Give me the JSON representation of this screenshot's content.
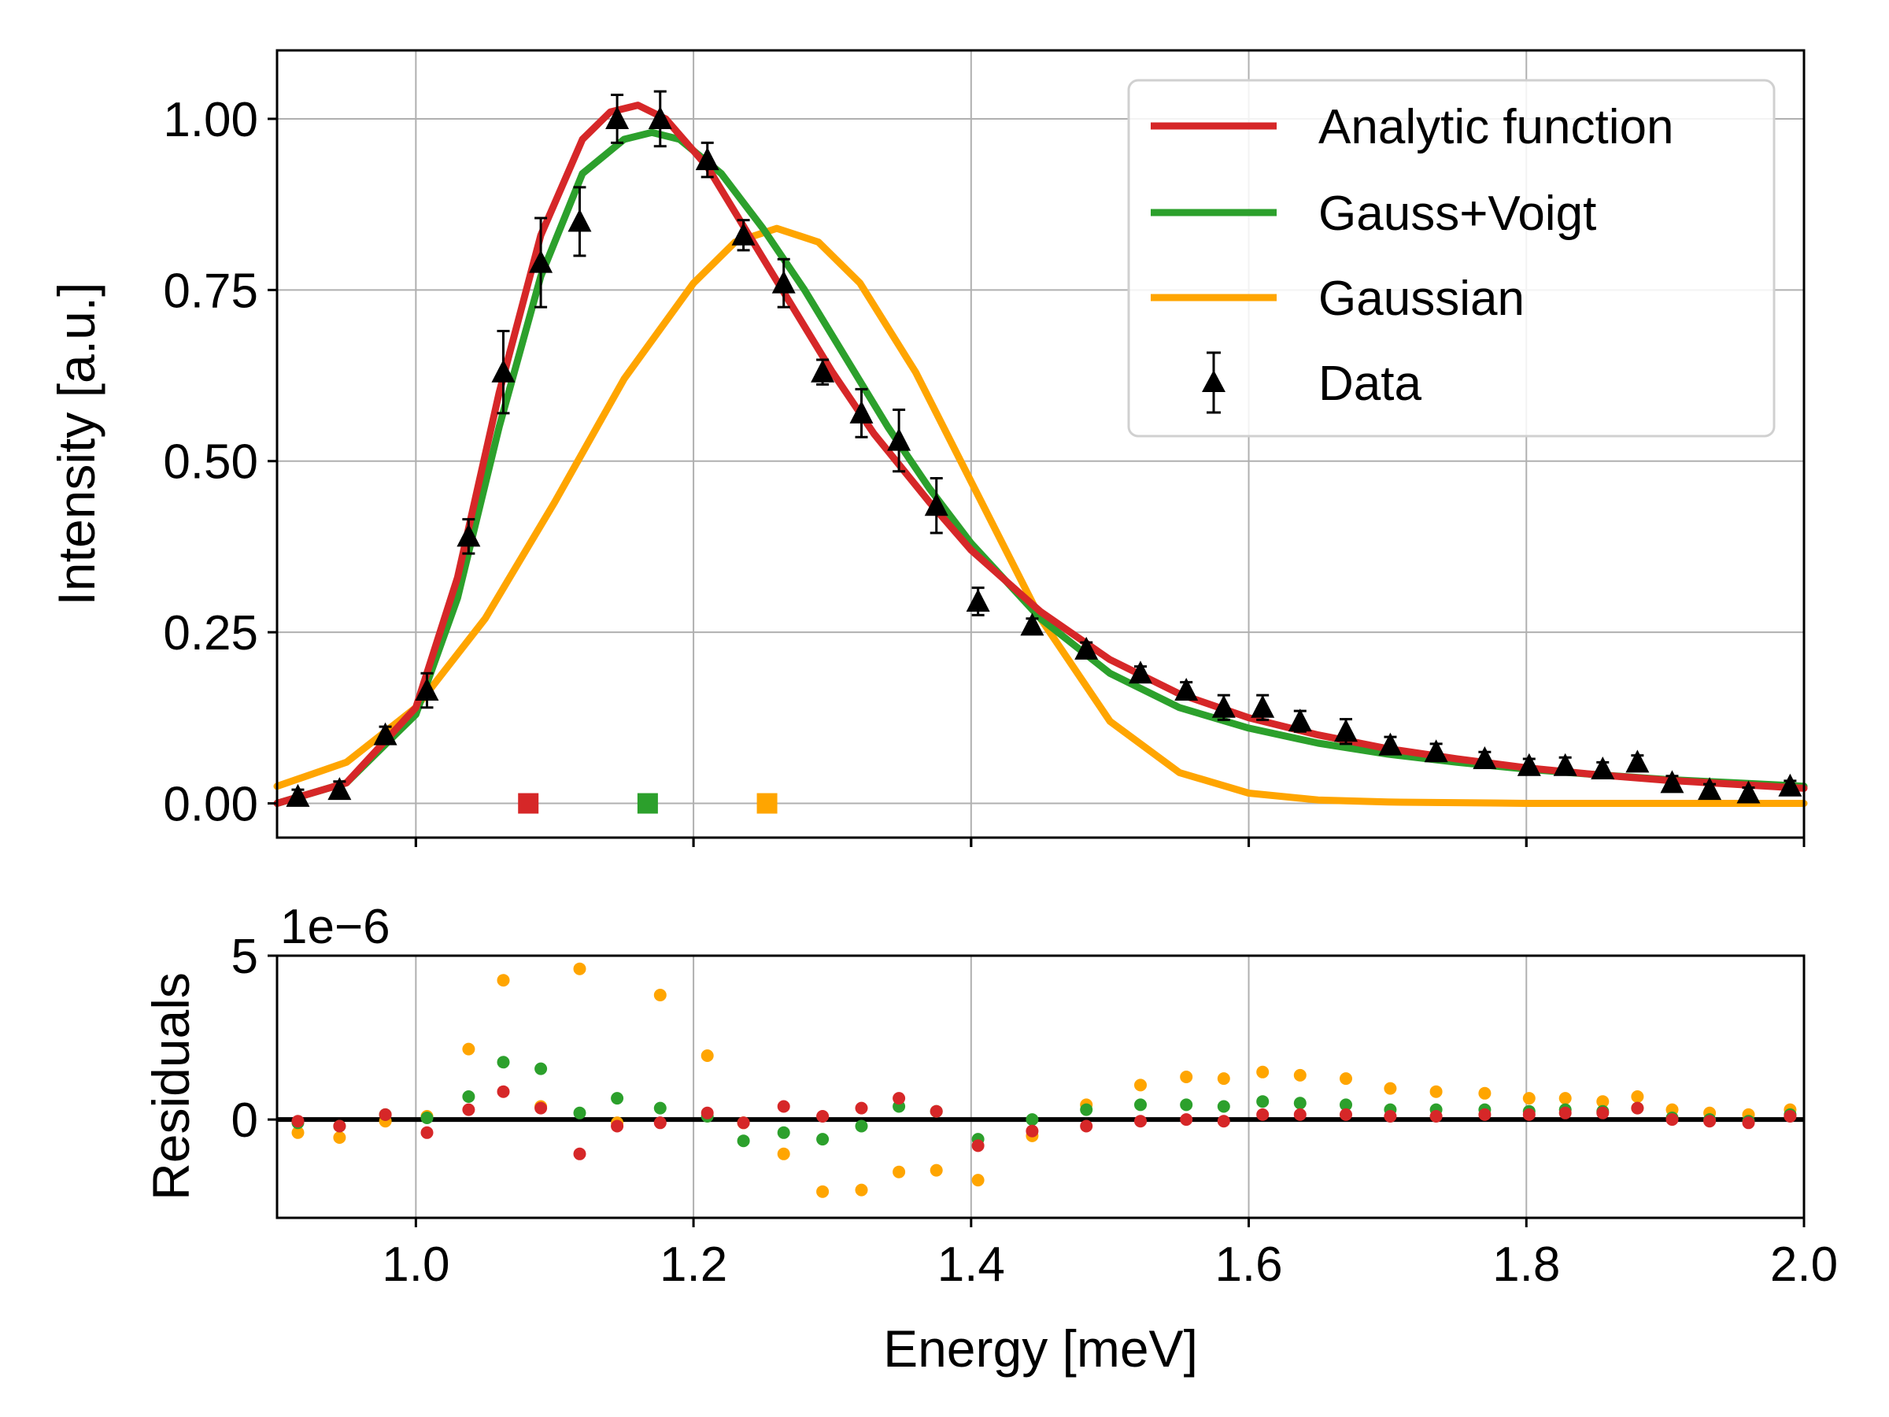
{
  "chart_data": [
    {
      "type": "line",
      "panel": "main",
      "title": "",
      "xlabel": "",
      "ylabel": "Intensity [a.u.]",
      "xlim": [
        0.9,
        2.0
      ],
      "ylim": [
        -0.05,
        1.1
      ],
      "xticks": [
        1.0,
        1.2,
        1.4,
        1.6,
        1.8,
        2.0
      ],
      "yticks": [
        0.0,
        0.25,
        0.5,
        0.75,
        1.0
      ],
      "ytick_labels": [
        "0.00",
        "0.25",
        "0.50",
        "0.75",
        "1.00"
      ],
      "grid": true,
      "legend_position": "top-right",
      "legend": [
        "Analytic function",
        "Gauss+Voigt",
        "Gaussian",
        "Data"
      ],
      "series": [
        {
          "name": "Analytic function",
          "color": "#d62728",
          "x": [
            0.9,
            0.95,
            1.0,
            1.03,
            1.06,
            1.09,
            1.12,
            1.14,
            1.16,
            1.18,
            1.21,
            1.24,
            1.27,
            1.3,
            1.33,
            1.37,
            1.4,
            1.45,
            1.5,
            1.55,
            1.6,
            1.65,
            1.7,
            1.75,
            1.8,
            1.85,
            1.9,
            1.95,
            2.0
          ],
          "y": [
            0.0,
            0.03,
            0.14,
            0.33,
            0.6,
            0.83,
            0.97,
            1.01,
            1.02,
            1.0,
            0.93,
            0.83,
            0.73,
            0.63,
            0.54,
            0.44,
            0.37,
            0.28,
            0.21,
            0.16,
            0.125,
            0.1,
            0.08,
            0.065,
            0.052,
            0.042,
            0.034,
            0.028,
            0.022
          ]
        },
        {
          "name": "Gauss+Voigt",
          "color": "#2ca02c",
          "x": [
            0.9,
            0.95,
            1.0,
            1.03,
            1.06,
            1.09,
            1.12,
            1.15,
            1.17,
            1.19,
            1.22,
            1.25,
            1.28,
            1.31,
            1.34,
            1.37,
            1.4,
            1.45,
            1.5,
            1.55,
            1.6,
            1.65,
            1.7,
            1.75,
            1.8,
            1.85,
            1.9,
            1.95,
            2.0
          ],
          "y": [
            0.0,
            0.03,
            0.13,
            0.3,
            0.55,
            0.77,
            0.92,
            0.97,
            0.98,
            0.97,
            0.92,
            0.84,
            0.75,
            0.65,
            0.55,
            0.46,
            0.38,
            0.27,
            0.19,
            0.14,
            0.11,
            0.088,
            0.072,
            0.06,
            0.05,
            0.042,
            0.035,
            0.03,
            0.025
          ]
        },
        {
          "name": "Gaussian",
          "color": "#ffa500",
          "x": [
            0.9,
            0.95,
            1.0,
            1.05,
            1.1,
            1.15,
            1.2,
            1.23,
            1.26,
            1.29,
            1.32,
            1.36,
            1.4,
            1.45,
            1.5,
            1.55,
            1.6,
            1.65,
            1.7,
            1.8,
            1.9,
            2.0
          ],
          "y": [
            0.025,
            0.06,
            0.14,
            0.27,
            0.44,
            0.62,
            0.76,
            0.82,
            0.84,
            0.82,
            0.76,
            0.63,
            0.47,
            0.27,
            0.12,
            0.045,
            0.015,
            0.005,
            0.002,
            0.0,
            0.0,
            0.0
          ]
        },
        {
          "name": "Data",
          "color": "#000000",
          "marker": "triangle",
          "x": [
            0.915,
            0.945,
            0.978,
            1.008,
            1.038,
            1.063,
            1.09,
            1.118,
            1.145,
            1.176,
            1.21,
            1.236,
            1.265,
            1.293,
            1.321,
            1.348,
            1.375,
            1.405,
            1.444,
            1.483,
            1.522,
            1.555,
            1.582,
            1.61,
            1.637,
            1.67,
            1.702,
            1.735,
            1.77,
            1.802,
            1.828,
            1.855,
            1.88,
            1.905,
            1.932,
            1.96,
            1.99
          ],
          "y": [
            0.01,
            0.02,
            0.1,
            0.165,
            0.39,
            0.63,
            0.79,
            0.85,
            1.0,
            1.0,
            0.94,
            0.83,
            0.76,
            0.63,
            0.57,
            0.53,
            0.435,
            0.295,
            0.26,
            0.225,
            0.19,
            0.165,
            0.14,
            0.14,
            0.12,
            0.105,
            0.085,
            0.075,
            0.065,
            0.055,
            0.055,
            0.05,
            0.06,
            0.03,
            0.02,
            0.015,
            0.025
          ],
          "yerr": [
            0.01,
            0.012,
            0.012,
            0.025,
            0.025,
            0.06,
            0.065,
            0.05,
            0.035,
            0.04,
            0.025,
            0.022,
            0.035,
            0.018,
            0.035,
            0.045,
            0.04,
            0.02,
            0.01,
            0.01,
            0.01,
            0.012,
            0.018,
            0.018,
            0.015,
            0.018,
            0.012,
            0.012,
            0.01,
            0.01,
            0.012,
            0.01,
            0.01,
            0.01,
            0.008,
            0.008,
            0.008
          ]
        }
      ],
      "peak_markers": [
        {
          "name": "Analytic function",
          "x": 1.081,
          "y": 0.0,
          "color": "#d62728"
        },
        {
          "name": "Gauss+Voigt",
          "x": 1.167,
          "y": 0.0,
          "color": "#2ca02c"
        },
        {
          "name": "Gaussian",
          "x": 1.253,
          "y": 0.0,
          "color": "#ffa500"
        }
      ]
    },
    {
      "type": "scatter",
      "panel": "residuals",
      "title": "",
      "xlabel": "Energy [meV]",
      "ylabel": "Residuals",
      "xlim": [
        0.9,
        2.0
      ],
      "ylim": [
        -3.0,
        5.0
      ],
      "xticks": [
        1.0,
        1.2,
        1.4,
        1.6,
        1.8,
        2.0
      ],
      "xtick_labels": [
        "1.0",
        "1.2",
        "1.4",
        "1.6",
        "1.8",
        "2.0"
      ],
      "yticks": [
        0,
        5
      ],
      "ytick_labels": [
        "0",
        "5"
      ],
      "offset_label": "1e−6",
      "grid": true,
      "x": [
        0.915,
        0.945,
        0.978,
        1.008,
        1.038,
        1.063,
        1.09,
        1.118,
        1.145,
        1.176,
        1.21,
        1.236,
        1.265,
        1.293,
        1.321,
        1.348,
        1.375,
        1.405,
        1.444,
        1.483,
        1.522,
        1.555,
        1.582,
        1.61,
        1.637,
        1.67,
        1.702,
        1.735,
        1.77,
        1.802,
        1.828,
        1.855,
        1.88,
        1.905,
        1.932,
        1.96,
        1.99
      ],
      "series": [
        {
          "name": "Gaussian",
          "color": "#ffa500",
          "values": [
            -0.4,
            -0.55,
            -0.05,
            0.1,
            2.15,
            4.25,
            0.4,
            4.6,
            -0.1,
            3.8,
            1.95,
            -0.1,
            -1.05,
            -2.2,
            -2.15,
            -1.6,
            -1.55,
            -1.85,
            -0.5,
            0.45,
            1.05,
            1.3,
            1.25,
            1.45,
            1.35,
            1.25,
            0.95,
            0.85,
            0.8,
            0.65,
            0.65,
            0.55,
            0.7,
            0.3,
            0.2,
            0.15,
            0.3
          ]
        },
        {
          "name": "Gauss+Voigt",
          "color": "#2ca02c",
          "values": [
            -0.1,
            -0.2,
            0.15,
            0.05,
            0.7,
            1.75,
            1.55,
            0.2,
            0.65,
            0.35,
            0.1,
            -0.65,
            -0.4,
            -0.6,
            -0.2,
            0.4,
            0.25,
            -0.6,
            0.0,
            0.3,
            0.45,
            0.45,
            0.4,
            0.55,
            0.5,
            0.45,
            0.3,
            0.3,
            0.3,
            0.25,
            0.3,
            0.25,
            0.35,
            0.05,
            0.0,
            -0.05,
            0.15
          ]
        },
        {
          "name": "Analytic function",
          "color": "#d62728",
          "values": [
            -0.05,
            -0.2,
            0.15,
            -0.4,
            0.3,
            0.85,
            0.35,
            -1.05,
            -0.2,
            -0.1,
            0.2,
            -0.1,
            0.4,
            0.1,
            0.35,
            0.65,
            0.25,
            -0.8,
            -0.35,
            -0.2,
            -0.05,
            0.0,
            -0.05,
            0.15,
            0.15,
            0.15,
            0.1,
            0.1,
            0.15,
            0.15,
            0.2,
            0.2,
            0.35,
            0.0,
            -0.05,
            -0.1,
            0.1
          ]
        }
      ]
    }
  ]
}
